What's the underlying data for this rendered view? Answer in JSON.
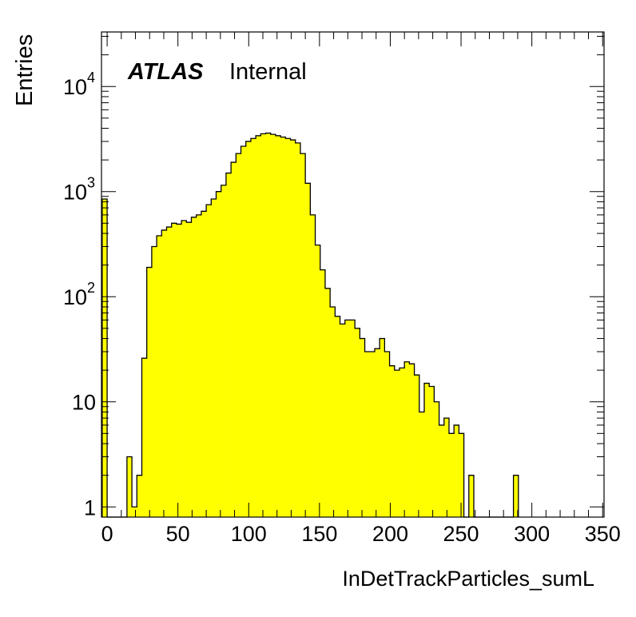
{
  "chart_data": {
    "type": "histogram",
    "title": "",
    "xlabel": "InDetTrackParticles_sumL",
    "ylabel": "Entries",
    "yscale": "log",
    "xlim": [
      -4,
      351
    ],
    "ylim": [
      0.8,
      33000
    ],
    "bin_width": 3.5,
    "bin_start": -3.5,
    "values": [
      850,
      0,
      0,
      0,
      0,
      3,
      1,
      2,
      26,
      190,
      300,
      380,
      430,
      460,
      500,
      490,
      530,
      510,
      570,
      600,
      650,
      750,
      850,
      1000,
      1150,
      1500,
      1900,
      2300,
      2700,
      3000,
      3200,
      3400,
      3550,
      3600,
      3500,
      3400,
      3300,
      3200,
      3100,
      2900,
      2300,
      1200,
      600,
      310,
      180,
      120,
      80,
      65,
      55,
      60,
      60,
      50,
      40,
      30,
      30,
      32,
      40,
      30,
      22,
      20,
      21,
      24,
      23,
      18,
      8,
      15,
      14,
      10,
      6,
      7,
      5,
      6,
      5,
      0,
      2,
      0,
      0,
      0,
      0,
      0,
      0,
      0,
      0,
      2
    ],
    "x_ticks": [
      "0",
      "50",
      "100",
      "150",
      "200",
      "250",
      "300",
      "350"
    ],
    "y_ticks": [
      {
        "label": "1",
        "exp": "",
        "value": 1
      },
      {
        "label": "10",
        "exp": "",
        "value": 10
      },
      {
        "label": "10",
        "exp": "2",
        "value": 100
      },
      {
        "label": "10",
        "exp": "3",
        "value": 1000
      },
      {
        "label": "10",
        "exp": "4",
        "value": 10000
      }
    ],
    "fill_color": "#ffff00",
    "line_color": "#000000",
    "grid": false,
    "legend": "none",
    "annotation": {
      "bold": "ATLAS",
      "normal": "Internal"
    }
  }
}
